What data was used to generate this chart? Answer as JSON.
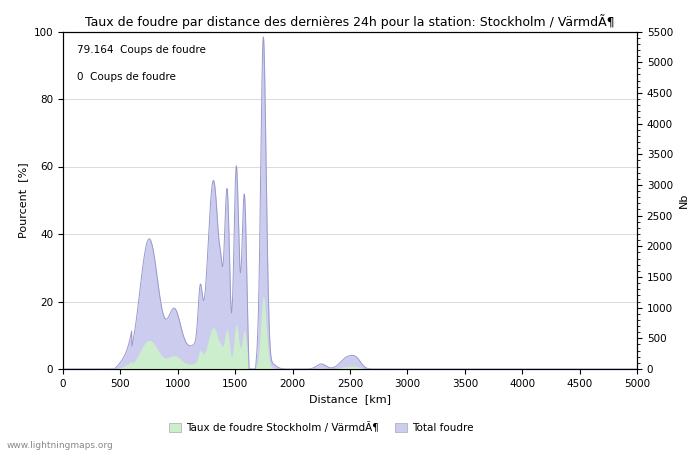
{
  "title": "Taux de foudre par distance des dernières 24h pour la station: Stockholm / VärmdÃ¶",
  "xlabel": "Distance  [km]",
  "ylabel_left": "Pourcent  [%]",
  "ylabel_right": "Nb",
  "annotation_line1": "79.164  Coups de foudre",
  "annotation_line2": "0  Coups de foudre",
  "xlim": [
    0,
    5000
  ],
  "ylim_left": [
    0,
    100
  ],
  "ylim_right": [
    0,
    5500
  ],
  "xticks": [
    0,
    500,
    1000,
    1500,
    2000,
    2500,
    3000,
    3500,
    4000,
    4500,
    5000
  ],
  "yticks_left": [
    0,
    20,
    40,
    60,
    80,
    100
  ],
  "yticks_right": [
    0,
    500,
    1000,
    1500,
    2000,
    2500,
    3000,
    3500,
    4000,
    4500,
    5000,
    5500
  ],
  "watermark": "www.lightningmaps.org",
  "legend_green_label": "Taux de foudre Stockholm / VärmdÃ¶",
  "legend_blue_label": "Total foudre",
  "line_color": "#9999cc",
  "fill_green_color": "#cceecc",
  "fill_blue_color": "#ccccee",
  "background_color": "#ffffff",
  "grid_color": "#cccccc",
  "title_fontsize": 9,
  "axis_fontsize": 8,
  "tick_fontsize": 7.5,
  "annotation_fontsize": 7.5
}
